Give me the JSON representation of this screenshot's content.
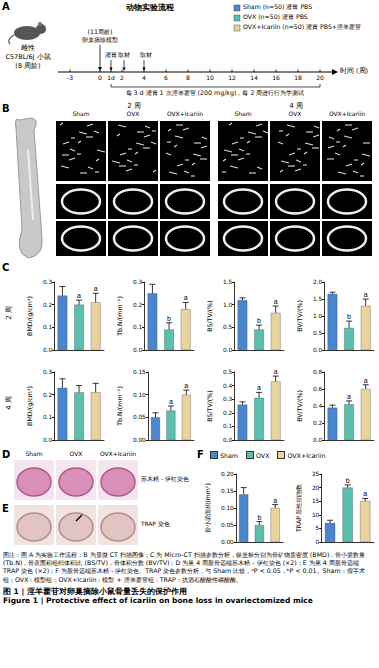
{
  "figure": {
    "panel_labels": [
      "A",
      "B",
      "C",
      "D",
      "E",
      "F"
    ],
    "A": {
      "title": "动物实验流程",
      "animal": [
        "雌性",
        "C57BL/6J 小鼠",
        "(8 周龄)"
      ],
      "model": [
        "(11周龄)",
        "卵巢摘除模型"
      ],
      "events": [
        "灌胃",
        "取材",
        "取材"
      ],
      "timeline": {
        "ticks": [
          "-3",
          "0",
          "1d",
          "2",
          "4",
          "6",
          "8",
          "10",
          "12",
          "14",
          "16",
          "18",
          "20"
        ],
        "label": "时间 (周)"
      },
      "note": "每 3 d 灌胃 1 次淫羊藿苷 (200 mg/kg)，每 2 周进行行为学测试",
      "groups": [
        "Sham (n=50) 灌胃 PBS",
        "OVX (n=50) 灌胃 PBS",
        "OVX+Icariin (n=50) 灌胃 PBS+淫羊藿苷"
      ],
      "colors": [
        "#4a86cf",
        "#5bbfae",
        "#e9d29c"
      ]
    },
    "B": {
      "weeks": [
        "2 周",
        "4 周"
      ],
      "groups": [
        "Sham",
        "OVX",
        "OVX+Icariin"
      ]
    },
    "C": {
      "rows": [
        "2 周",
        "4 周"
      ]
    },
    "D": {
      "groups": [
        "Sham",
        "OVX",
        "OVX+Icariin"
      ],
      "label": "苏木精 - 伊红染色"
    },
    "E": {
      "label": "TRAP 染色"
    },
    "caption": "图注：图 A 为实验工作流程；B 为显微 CT 扫描图像；C 为 Micro-CT 扫描参数分析，纵坐标分别为骨矿物质密度 (BMD)，骨小梁数量 (Tb.N)，骨表面积组织体积比 (BS/TV)，骨体积分数 (BV/TV)；D 为第 4 周股骨远端苏木精 - 伊红染色 (×2)；E 为第 4 周股骨远端 TRAP 染色 (×2)；F 为股骨远端苏木精 - 伊红染色、TRAP 染色参数分析，与 Sham 比较，ᵃP < 0.05，ᵇP < 0.01。Sham：假手术组；OVX：模型组；OVX+Icariin：模型 + 淫羊藿苷组；TRAP：抗酒石酸酸性磷酸酶。",
    "title_zh": "图 1 | 淫羊藿苷对卵巢摘除小鼠骨量丢失的保护作用",
    "title_en": "Figure 1 | Protective effect of icariin on bone loss in ovariectomized mice"
  },
  "chart_data": [
    {
      "type": "bar",
      "ylabel": "BMD/(g/cm³)",
      "categories": [
        "Sham",
        "OVX",
        "OVX+Icariin"
      ],
      "values": [
        0.24,
        0.2,
        0.21
      ],
      "errors": [
        0.04,
        0.02,
        0.04
      ],
      "significance": [
        null,
        "a",
        "a"
      ],
      "colors": [
        "#4a86cf",
        "#5bbfae",
        "#e9d29c"
      ],
      "ylim": [
        0,
        0.3
      ],
      "yticks": [
        {
          "value": 0,
          "label": "0.0"
        },
        0.1,
        0.2,
        0.3
      ],
      "tick_labels": "y"
    },
    {
      "type": "bar",
      "ylabel": "Tb.N/(mm⁻¹)",
      "categories": [
        "Sham",
        "OVX",
        "OVX+Icariin"
      ],
      "values": [
        0.25,
        0.09,
        0.18
      ],
      "errors": [
        0.04,
        0.03,
        0.03
      ],
      "significance": [
        null,
        "b",
        "a"
      ],
      "colors": [
        "#4a86cf",
        "#5bbfae",
        "#e9d29c"
      ],
      "ylim": [
        0,
        0.3
      ],
      "yticks": [
        {
          "value": 0,
          "label": "0.0"
        },
        0.1,
        0.2,
        0.3
      ],
      "tick_labels": "y"
    },
    {
      "type": "bar",
      "ylabel": "BS/TV/(%)",
      "categories": [
        "Sham",
        "OVX",
        "OVX+Icariin"
      ],
      "values": [
        1.1,
        0.45,
        0.82
      ],
      "errors": [
        0.05,
        0.1,
        0.15
      ],
      "significance": [
        null,
        "b",
        "a"
      ],
      "colors": [
        "#4a86cf",
        "#5bbfae",
        "#e9d29c"
      ],
      "ylim": [
        0,
        1.5
      ],
      "yticks": [
        {
          "value": 0,
          "label": "0.0"
        },
        0.5,
        {
          "value": 1,
          "label": "1.0"
        },
        1.5
      ],
      "tick_labels": "y"
    },
    {
      "type": "bar",
      "ylabel": "BV/TV/(%)",
      "categories": [
        "Sham",
        "OVX",
        "OVX+Icariin"
      ],
      "values": [
        1.65,
        0.65,
        1.3
      ],
      "errors": [
        0.05,
        0.2,
        0.2
      ],
      "significance": [
        null,
        "b",
        "a"
      ],
      "colors": [
        "#4a86cf",
        "#5bbfae",
        "#e9d29c"
      ],
      "ylim": [
        0,
        2
      ],
      "yticks": [
        {
          "value": 0,
          "label": "0.0"
        },
        0.5,
        {
          "value": 1,
          "label": "1.0"
        },
        1.5,
        {
          "value": 2,
          "label": "2.0"
        }
      ],
      "tick_labels": "y"
    },
    {
      "type": "bar",
      "ylabel": "BMD/(g/cm³)",
      "categories": [
        "Sham",
        "OVX",
        "OVX+Icariin"
      ],
      "values": [
        0.23,
        0.21,
        0.21
      ],
      "errors": [
        0.04,
        0.03,
        0.04
      ],
      "significance": [
        null,
        null,
        null
      ],
      "colors": [
        "#4a86cf",
        "#5bbfae",
        "#e9d29c"
      ],
      "ylim": [
        0,
        0.3
      ],
      "yticks": [
        {
          "value": 0,
          "label": "0.0"
        },
        0.1,
        0.2,
        0.3
      ],
      "tick_labels": "y"
    },
    {
      "type": "bar",
      "ylabel": "Tb.N/(mm⁻¹)",
      "categories": [
        "Sham",
        "OVX",
        "OVX+Icariin"
      ],
      "values": [
        0.05,
        0.065,
        0.1
      ],
      "errors": [
        0.01,
        0.01,
        0.01
      ],
      "significance": [
        null,
        "a",
        "a"
      ],
      "colors": [
        "#4a86cf",
        "#5bbfae",
        "#e9d29c"
      ],
      "ylim": [
        0,
        0.15
      ],
      "yticks": [
        {
          "value": 0,
          "label": "0.00"
        },
        0.05,
        {
          "value": 0.1,
          "label": "0.10"
        },
        0.15
      ],
      "tick_labels": "y"
    },
    {
      "type": "bar",
      "ylabel": "BS/TV/(%)",
      "categories": [
        "Sham",
        "OVX",
        "OVX+Icariin"
      ],
      "values": [
        0.26,
        0.31,
        0.43
      ],
      "errors": [
        0.02,
        0.04,
        0.04
      ],
      "significance": [
        null,
        "a",
        "a"
      ],
      "colors": [
        "#4a86cf",
        "#5bbfae",
        "#e9d29c"
      ],
      "ylim": [
        0,
        0.5
      ],
      "yticks": [
        {
          "value": 0,
          "label": "0.0"
        },
        0.1,
        0.2,
        0.3,
        0.4,
        0.5
      ],
      "tick_labels": "y"
    },
    {
      "type": "bar",
      "ylabel": "BV/TV/(%)",
      "categories": [
        "Sham",
        "OVX",
        "OVX+Icariin"
      ],
      "values": [
        0.38,
        0.42,
        0.6
      ],
      "errors": [
        0.03,
        0.04,
        0.05
      ],
      "significance": [
        null,
        "a",
        "a"
      ],
      "colors": [
        "#4a86cf",
        "#5bbfae",
        "#e9d29c"
      ],
      "ylim": [
        0,
        0.8
      ],
      "yticks": [
        {
          "value": 0,
          "label": "0.0"
        },
        0.2,
        0.4,
        0.6,
        0.8
      ],
      "tick_labels": "y"
    },
    {
      "type": "bar",
      "ylabel": "骨小梁面积(mm²)",
      "categories": [
        "Sham",
        "OVX",
        "OVX+Icariin"
      ],
      "values": [
        0.14,
        0.05,
        0.1
      ],
      "errors": [
        0.02,
        0.01,
        0.01
      ],
      "significance": [
        null,
        "b",
        "a"
      ],
      "colors": [
        "#4a86cf",
        "#5bbfae",
        "#e9d29c"
      ],
      "ylim": [
        0,
        0.2
      ],
      "yticks": [
        {
          "value": 0,
          "label": "0.00"
        },
        0.05,
        {
          "value": 0.1,
          "label": "0.10"
        },
        0.15,
        {
          "value": 0.2,
          "label": "0.20"
        }
      ],
      "tick_labels": "y",
      "legend": "top"
    },
    {
      "type": "bar",
      "ylabel": "TRAP 阳性细胞数",
      "categories": [
        "Sham",
        "OVX",
        "OVX+Icariin"
      ],
      "values": [
        7,
        20,
        15
      ],
      "errors": [
        1,
        1,
        1
      ],
      "significance": [
        null,
        "b",
        "a"
      ],
      "colors": [
        "#4a86cf",
        "#5bbfae",
        "#e9d29c"
      ],
      "ylim": [
        0,
        25
      ],
      "yticks": [
        0,
        5,
        10,
        15,
        20,
        25
      ],
      "tick_labels": "y"
    }
  ]
}
